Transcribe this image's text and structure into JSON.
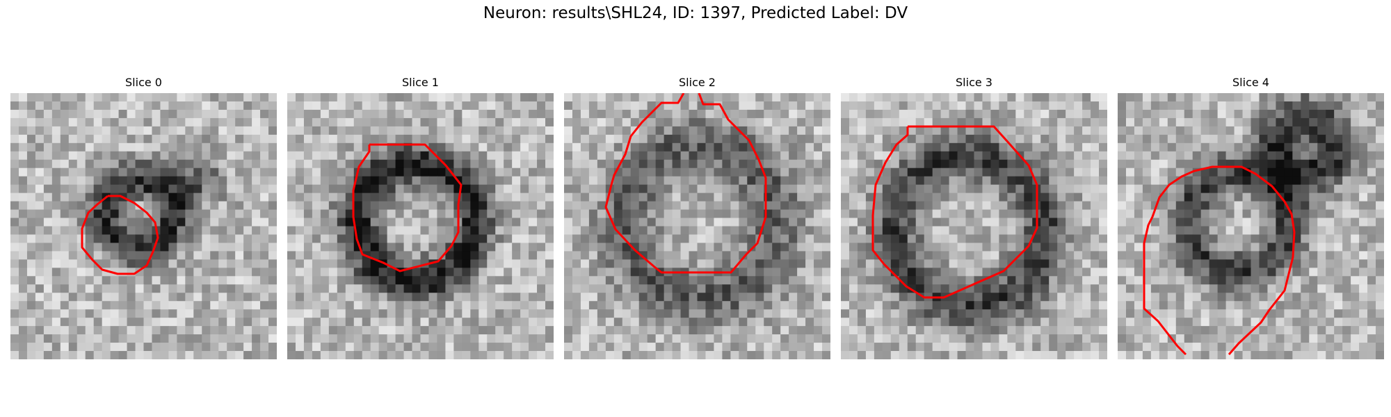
{
  "figure": {
    "title": "Neuron: results\\SHL24, ID: 1397, Predicted Label: DV"
  },
  "panels": [
    {
      "title": "Slice 0"
    },
    {
      "title": "Slice 1"
    },
    {
      "title": "Slice 2"
    },
    {
      "title": "Slice 3"
    },
    {
      "title": "Slice 4"
    }
  ],
  "colors": {
    "contour": "#ff0000",
    "background": "#ffffff"
  }
}
